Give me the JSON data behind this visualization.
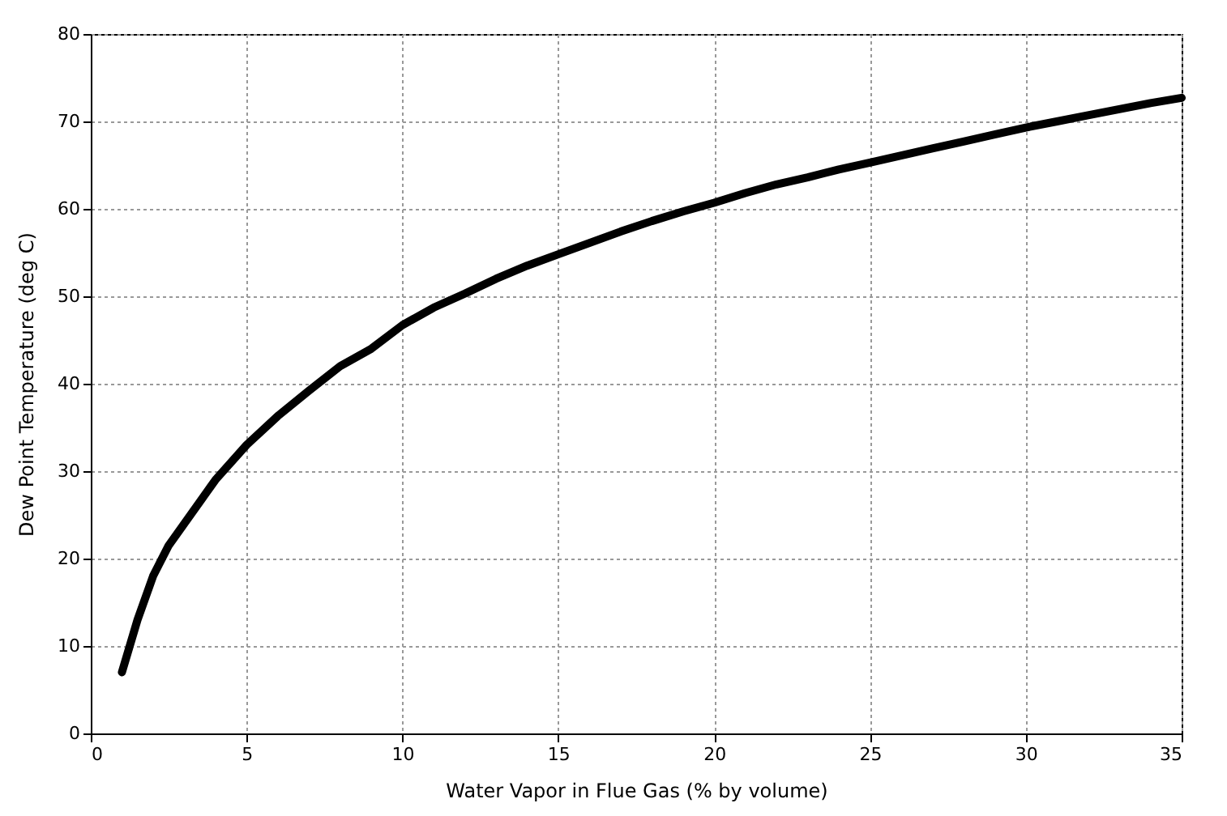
{
  "chart_data": {
    "type": "line",
    "xlabel": "Water Vapor in Flue Gas (% by volume)",
    "ylabel": "Dew Point Temperature (deg C)",
    "x": [
      1,
      1.5,
      2,
      2.5,
      3,
      3.5,
      4,
      5,
      6,
      7,
      8,
      9,
      10,
      11,
      12,
      13,
      14,
      15,
      16,
      17,
      18,
      19,
      20,
      21,
      22,
      23,
      24,
      25,
      26,
      27,
      28,
      29,
      30,
      31,
      32,
      33,
      34,
      35
    ],
    "series": [
      {
        "color": "#000000",
        "values": [
          7,
          13,
          18,
          21.5,
          24,
          26.5,
          29,
          33,
          36.3,
          39.2,
          42,
          44,
          46.7,
          48.7,
          50.3,
          52,
          53.5,
          54.8,
          56.1,
          57.4,
          58.6,
          59.7,
          60.7,
          61.8,
          62.8,
          63.6,
          64.5,
          65.3,
          66.1,
          66.9,
          67.7,
          68.5,
          69.3,
          70,
          70.7,
          71.4,
          72.1,
          72.7
        ]
      }
    ],
    "xlim": [
      0,
      35
    ],
    "xticks": [
      0,
      5,
      10,
      15,
      20,
      25,
      30,
      35
    ],
    "ylim": [
      0,
      80
    ],
    "yticks": [
      0,
      10,
      20,
      30,
      40,
      50,
      60,
      70,
      80
    ],
    "grid": true,
    "marker": "none",
    "line_style": "solid",
    "legend": false
  }
}
